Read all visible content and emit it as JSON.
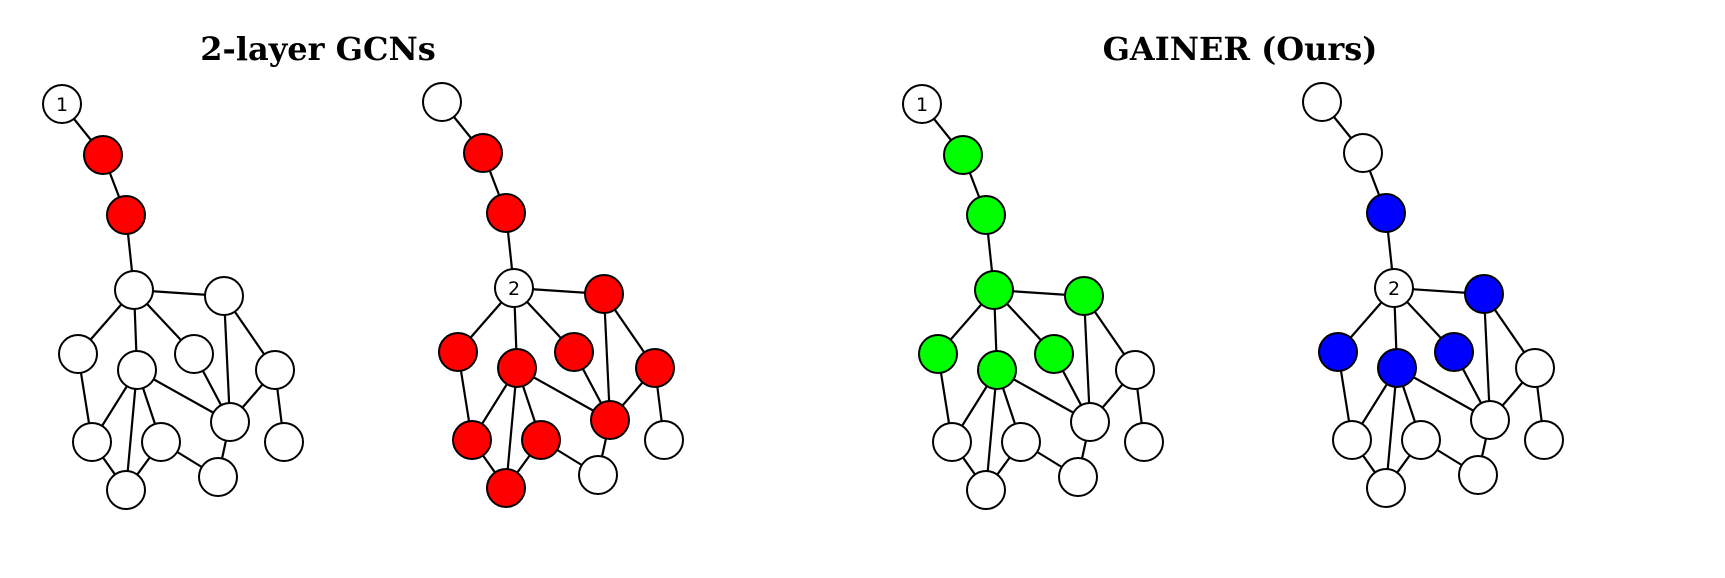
{
  "titles": {
    "left": "2-layer GCNs",
    "right": "GAINER (Ours)"
  },
  "colors": {
    "white": "#ffffff",
    "red": "#ff0000",
    "green": "#00ff00",
    "blue": "#0000ff"
  },
  "graph": {
    "edges": [
      [
        0,
        1
      ],
      [
        1,
        2
      ],
      [
        2,
        3
      ],
      [
        3,
        4
      ],
      [
        3,
        5
      ],
      [
        3,
        6
      ],
      [
        3,
        7
      ],
      [
        4,
        8
      ],
      [
        4,
        9
      ],
      [
        5,
        6
      ],
      [
        5,
        10
      ],
      [
        6,
        10
      ],
      [
        7,
        11
      ],
      [
        7,
        12
      ],
      [
        7,
        13
      ],
      [
        7,
        14
      ],
      [
        7,
        10
      ],
      [
        11,
        12
      ],
      [
        9,
        10
      ],
      [
        9,
        15
      ],
      [
        11,
        14
      ],
      [
        12,
        13
      ]
    ]
  },
  "panels": [
    {
      "name": "gcn-node-1",
      "label_node": 0,
      "label": "1",
      "colors": [
        "white",
        "red",
        "red",
        "white",
        "white",
        "white",
        "white",
        "white",
        "white",
        "white",
        "white",
        "white",
        "white",
        "white",
        "white",
        "white"
      ]
    },
    {
      "name": "gcn-node-2",
      "label_node": 3,
      "label": "2",
      "colors": [
        "white",
        "red",
        "red",
        "white",
        "red",
        "red",
        "red",
        "red",
        "red",
        "red",
        "red",
        "red",
        "red",
        "white",
        "red",
        "white"
      ]
    },
    {
      "name": "gainer-node-1",
      "label_node": 0,
      "label": "1",
      "colors": [
        "white",
        "green",
        "green",
        "green",
        "green",
        "green",
        "green",
        "green",
        "white",
        "white",
        "white",
        "white",
        "white",
        "white",
        "white",
        "white"
      ]
    },
    {
      "name": "gainer-node-2",
      "label_node": 3,
      "label": "2",
      "colors": [
        "white",
        "white",
        "blue",
        "white",
        "blue",
        "blue",
        "blue",
        "blue",
        "white",
        "white",
        "white",
        "white",
        "white",
        "white",
        "white",
        "white"
      ]
    }
  ]
}
